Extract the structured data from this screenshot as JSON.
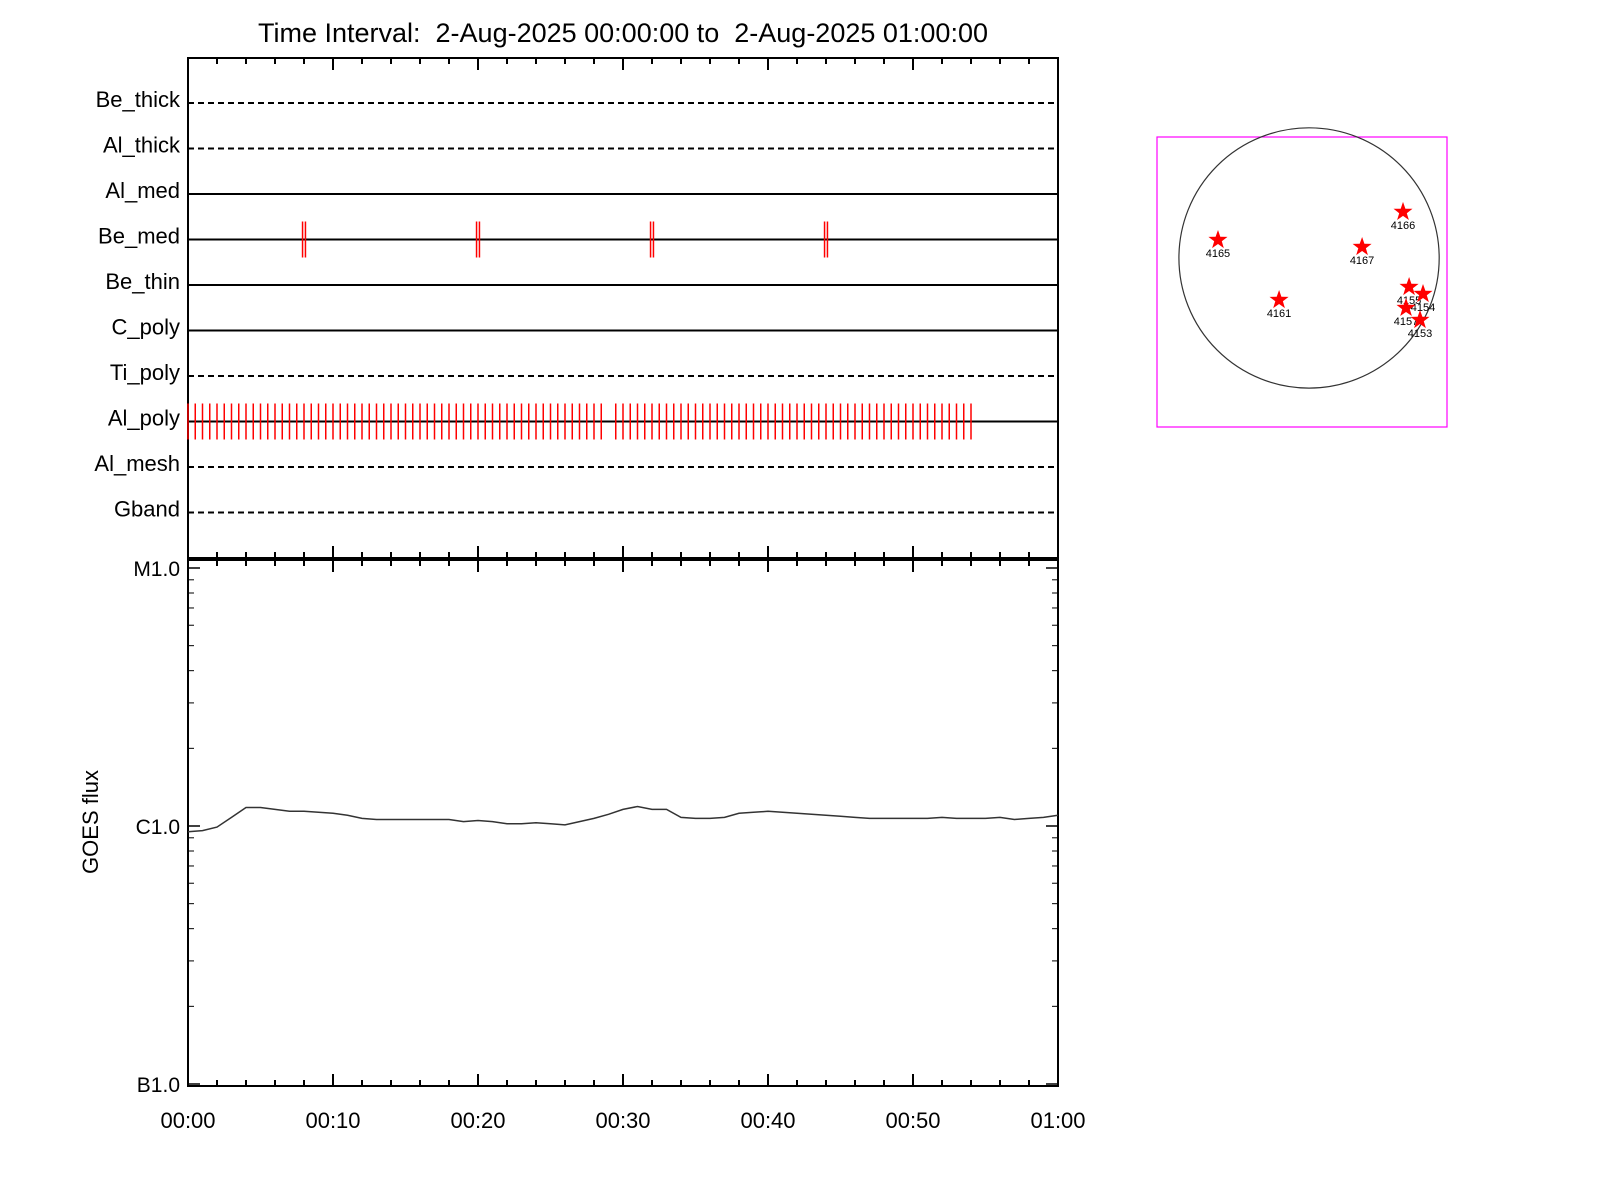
{
  "chart_data": [
    {
      "type": "timeline",
      "title": "Time Interval:  2-Aug-2025 00:00:00 to  2-Aug-2025 01:00:00",
      "categories": [
        "Be_thick",
        "Al_thick",
        "Al_med",
        "Be_med",
        "Be_thin",
        "C_poly",
        "Ti_poly",
        "Al_poly",
        "Al_mesh",
        "Gband"
      ],
      "styles": [
        "dashed",
        "dashed",
        "solid",
        "solid",
        "solid",
        "solid",
        "dashed",
        "solid",
        "dashed",
        "dashed"
      ],
      "events": [
        [],
        [],
        [],
        [
          7.9,
          8.1,
          19.9,
          20.1,
          31.9,
          32.1,
          43.9,
          44.1
        ],
        [],
        [],
        [],
        [
          0,
          0.5,
          1,
          1.5,
          2,
          2.5,
          3,
          3.5,
          4,
          4.5,
          5,
          5.5,
          6,
          6.5,
          7,
          7.5,
          8,
          8.5,
          9,
          9.5,
          10,
          10.5,
          11,
          11.5,
          12,
          12.5,
          13,
          13.5,
          14,
          14.5,
          15,
          15.5,
          16,
          16.5,
          17,
          17.5,
          18,
          18.5,
          19,
          19.5,
          20,
          20.5,
          21,
          21.5,
          22,
          22.5,
          23,
          23.5,
          24,
          24.5,
          25,
          25.5,
          26,
          26.5,
          27,
          27.5,
          28,
          28.5,
          29.5,
          30,
          30.5,
          31,
          31.5,
          32,
          32.5,
          33,
          33.5,
          34,
          34.5,
          35,
          35.5,
          36,
          36.5,
          37,
          37.5,
          38,
          38.5,
          39,
          39.5,
          40,
          40.5,
          41,
          41.5,
          42,
          42.5,
          43,
          43.5,
          44,
          44.5,
          45,
          45.5,
          46,
          46.5,
          47,
          47.5,
          48,
          48.5,
          49,
          49.5,
          50,
          50.5,
          51,
          51.5,
          52,
          52.5,
          53,
          53.5,
          54
        ],
        [],
        []
      ],
      "event_color": "#ff0000",
      "xlim": [
        0,
        60
      ],
      "xticks": [
        0,
        10,
        20,
        30,
        40,
        50,
        60
      ],
      "xminor": [
        2,
        4,
        6,
        8,
        12,
        14,
        16,
        18,
        22,
        24,
        26,
        28,
        32,
        34,
        36,
        38,
        42,
        44,
        46,
        48,
        52,
        54,
        56,
        58
      ]
    },
    {
      "type": "line",
      "ylabel": "GOES flux",
      "x": [
        0,
        1,
        2,
        3,
        4,
        5,
        6,
        7,
        8,
        9,
        10,
        11,
        12,
        13,
        14,
        15,
        16,
        17,
        18,
        19,
        20,
        21,
        22,
        23,
        24,
        25,
        26,
        27,
        28,
        29,
        30,
        31,
        32,
        33,
        34,
        35,
        36,
        37,
        38,
        39,
        40,
        41,
        42,
        43,
        44,
        45,
        46,
        47,
        48,
        49,
        50,
        51,
        52,
        53,
        54,
        55,
        56,
        57,
        58,
        59,
        60
      ],
      "values": [
        9.5e-07,
        9.6e-07,
        9.9e-07,
        1.08e-06,
        1.18e-06,
        1.18e-06,
        1.16e-06,
        1.14e-06,
        1.14e-06,
        1.13e-06,
        1.12e-06,
        1.1e-06,
        1.07e-06,
        1.06e-06,
        1.06e-06,
        1.06e-06,
        1.06e-06,
        1.06e-06,
        1.06e-06,
        1.04e-06,
        1.05e-06,
        1.04e-06,
        1.02e-06,
        1.02e-06,
        1.03e-06,
        1.02e-06,
        1.01e-06,
        1.04e-06,
        1.07e-06,
        1.11e-06,
        1.16e-06,
        1.19e-06,
        1.16e-06,
        1.16e-06,
        1.08e-06,
        1.07e-06,
        1.07e-06,
        1.08e-06,
        1.12e-06,
        1.13e-06,
        1.14e-06,
        1.13e-06,
        1.12e-06,
        1.11e-06,
        1.1e-06,
        1.09e-06,
        1.08e-06,
        1.07e-06,
        1.07e-06,
        1.07e-06,
        1.07e-06,
        1.07e-06,
        1.08e-06,
        1.07e-06,
        1.07e-06,
        1.07e-06,
        1.08e-06,
        1.06e-06,
        1.07e-06,
        1.08e-06,
        1.1e-06
      ],
      "color": "#333333",
      "log": true,
      "ylim": [
        1e-07,
        1e-05
      ],
      "yticks": [
        {
          "value": 1e-07,
          "label": "B1.0"
        },
        {
          "value": 1e-06,
          "label": "C1.0"
        },
        {
          "value": 1e-05,
          "label": "M1.0"
        }
      ],
      "yminor": [
        2e-07,
        3e-07,
        4e-07,
        5e-07,
        6e-07,
        7e-07,
        8e-07,
        9e-07,
        2e-06,
        3e-06,
        4e-06,
        5e-06,
        6e-06,
        7e-06,
        8e-06,
        9e-06
      ],
      "xlim": [
        0,
        60
      ],
      "xticks": [
        {
          "value": 0,
          "label": "00:00"
        },
        {
          "value": 10,
          "label": "00:10"
        },
        {
          "value": 20,
          "label": "00:20"
        },
        {
          "value": 30,
          "label": "00:30"
        },
        {
          "value": 40,
          "label": "00:40"
        },
        {
          "value": 50,
          "label": "00:50"
        },
        {
          "value": 60,
          "label": "01:00"
        }
      ],
      "xminor": [
        2,
        4,
        6,
        8,
        12,
        14,
        16,
        18,
        22,
        24,
        26,
        28,
        32,
        34,
        36,
        38,
        42,
        44,
        46,
        48,
        52,
        54,
        56,
        58
      ]
    },
    {
      "type": "disk",
      "labels": [
        "4165",
        "4166",
        "4167",
        "4161",
        "4155",
        "4154",
        "4157",
        "4153"
      ],
      "x": [
        -665,
        686,
        387,
        -219,
        730,
        832,
        708,
        810
      ],
      "y": [
        131,
        336,
        80,
        -307,
        -212,
        -263,
        -365,
        -453
      ],
      "radius": 950,
      "xlim": [
        -1110,
        1007
      ],
      "ylim": [
        -1234,
        883
      ],
      "box_color": "#ff00ff",
      "marker_color": "#ff0000"
    }
  ]
}
